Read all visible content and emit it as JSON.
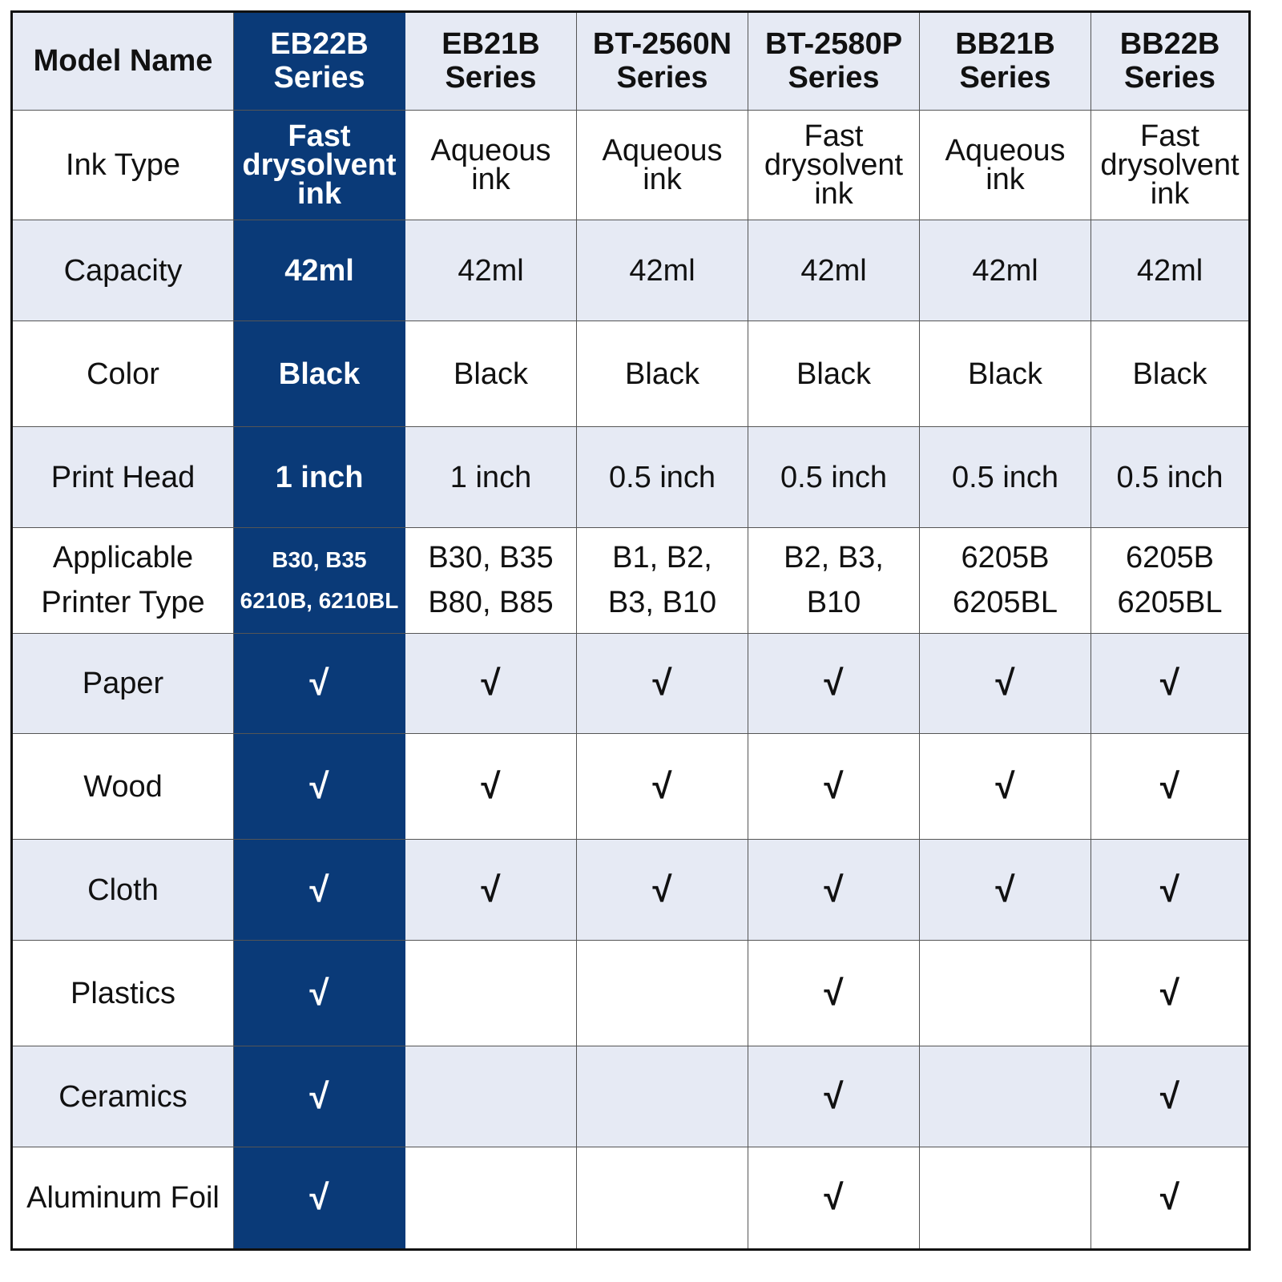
{
  "colors": {
    "highlight": "#0a3a78",
    "alt_row": "#e6eaf4",
    "border": "#555555"
  },
  "header": {
    "label": "Model Name",
    "models": [
      "EB22B Series",
      "EB21B Series",
      "BT-2560N Series",
      "BT-2580P Series",
      "BB21B Series",
      "BB22B Series"
    ]
  },
  "rows": [
    {
      "label": "Ink Type",
      "values": [
        "Fast drysolvent ink",
        "Aqueous ink",
        "Aqueous ink",
        "Fast drysolvent ink",
        "Aqueous ink",
        "Fast drysolvent ink"
      ]
    },
    {
      "label": "Capacity",
      "values": [
        "42ml",
        "42ml",
        "42ml",
        "42ml",
        "42ml",
        "42ml"
      ]
    },
    {
      "label": "Color",
      "values": [
        "Black",
        "Black",
        "Black",
        "Black",
        "Black",
        "Black"
      ]
    },
    {
      "label": "Print Head",
      "values": [
        "1 inch",
        "1 inch",
        "0.5 inch",
        "0.5 inch",
        "0.5 inch",
        "0.5 inch"
      ]
    },
    {
      "label": "Applicable Printer Type",
      "values": [
        "B30, B35 6210B, 6210BL",
        "B30, B35 B80, B85",
        "B1, B2, B3, B10",
        "B2, B3, B10",
        "6205B 6205BL",
        "6205B 6205BL"
      ]
    },
    {
      "label": "Paper",
      "values": [
        "√",
        "√",
        "√",
        "√",
        "√",
        "√"
      ]
    },
    {
      "label": "Wood",
      "values": [
        "√",
        "√",
        "√",
        "√",
        "√",
        "√"
      ]
    },
    {
      "label": "Cloth",
      "values": [
        "√",
        "√",
        "√",
        "√",
        "√",
        "√"
      ]
    },
    {
      "label": "Plastics",
      "values": [
        "√",
        "",
        "",
        "√",
        "",
        "√"
      ]
    },
    {
      "label": "Ceramics",
      "values": [
        "√",
        "",
        "",
        "√",
        "",
        "√"
      ]
    },
    {
      "label": "Aluminum Foil",
      "values": [
        "√",
        "",
        "",
        "√",
        "",
        "√"
      ]
    }
  ]
}
